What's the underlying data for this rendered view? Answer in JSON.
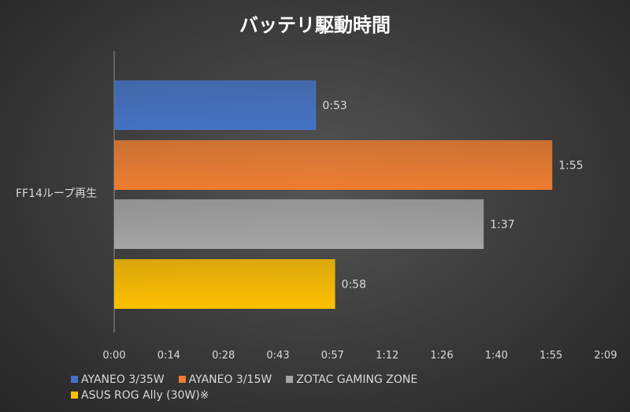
{
  "chart_data": {
    "type": "bar",
    "orientation": "horizontal",
    "title": "バッテリ駆動時間",
    "categories": [
      "FF14ループ再生"
    ],
    "series": [
      {
        "name": "AYANEO 3/35W",
        "values": [
          "0:53"
        ],
        "minutes": [
          53
        ],
        "color": "#4472c4"
      },
      {
        "name": "AYANEO 3/15W",
        "values": [
          "1:55"
        ],
        "minutes": [
          115
        ],
        "color": "#ed7d31"
      },
      {
        "name": "ZOTAC GAMING ZONE",
        "values": [
          "1:37"
        ],
        "minutes": [
          97
        ],
        "color": "#a5a5a5"
      },
      {
        "name": "ASUS ROG Ally (30W)※",
        "values": [
          "0:58"
        ],
        "minutes": [
          58
        ],
        "color": "#ffc000"
      }
    ],
    "xlim_minutes": [
      0,
      129
    ],
    "x_ticks": [
      "0:00",
      "0:14",
      "0:28",
      "0:43",
      "0:57",
      "1:12",
      "1:26",
      "1:40",
      "1:55",
      "2:09"
    ],
    "grid": false,
    "legend": "bottom"
  }
}
